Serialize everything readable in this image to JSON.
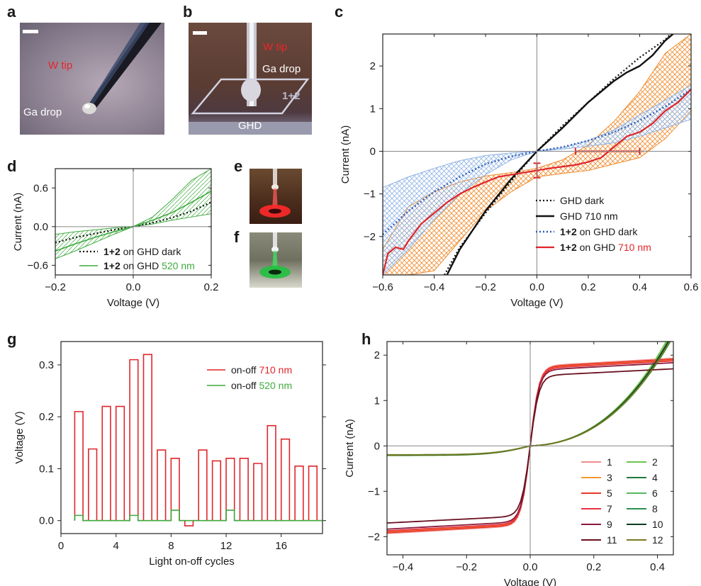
{
  "panels": {
    "a": {
      "label": "a",
      "tip_label": "W tip",
      "drop_label": "Ga drop"
    },
    "b": {
      "label": "b",
      "tip_label": "W tip",
      "drop_label": "Ga drop",
      "sample_label": "1+2",
      "substrate_label": "GHD"
    },
    "e": {
      "label": "e"
    },
    "f": {
      "label": "f"
    }
  },
  "colors": {
    "red": "#e0262b",
    "orange": "#f08a2a",
    "blue": "#2f5db6",
    "green": "#3faa3f",
    "black": "#111111",
    "lightblue": "#8fb3e3",
    "lightgreen": "#9fd49f"
  },
  "chart_data": [
    {
      "id": "c",
      "label": "c",
      "type": "line",
      "xlabel": "Voltage (V)",
      "ylabel": "Current (nA)",
      "xlim": [
        -0.6,
        0.6
      ],
      "ylim": [
        -2.9,
        2.75
      ],
      "xticks": [
        -0.6,
        -0.4,
        -0.2,
        0,
        0.2,
        0.4,
        0.6
      ],
      "yticks": [
        -2,
        -1,
        0,
        1,
        2
      ],
      "xtick_labels": [
        "−0.6",
        "−0.4",
        "−0.2",
        "0.0",
        "0.2",
        "0.4",
        "0.6"
      ],
      "ytick_labels": [
        "−2",
        "−1",
        "0",
        "1",
        "2"
      ],
      "legend": {
        "placement": "bottom-right"
      },
      "series": [
        {
          "name": "GHD dark",
          "name_plain": "GHD dark",
          "name_hl": "",
          "style": "dotted-black",
          "x": [
            -0.36,
            -0.3,
            -0.2,
            -0.1,
            0,
            0.1,
            0.2,
            0.3,
            0.4,
            0.5,
            0.52
          ],
          "y": [
            -2.9,
            -2.25,
            -1.45,
            -0.7,
            0,
            0.6,
            1.15,
            1.7,
            2.2,
            2.62,
            2.75
          ]
        },
        {
          "name": "GHD 710 nm",
          "name_plain": "GHD ",
          "name_hl": "710 nm",
          "style": "solid-black",
          "x": [
            -0.35,
            -0.3,
            -0.2,
            -0.1,
            0,
            0.1,
            0.2,
            0.3,
            0.35,
            0.4,
            0.45,
            0.5,
            0.53
          ],
          "y": [
            -2.9,
            -2.3,
            -1.4,
            -0.65,
            0,
            0.55,
            1.15,
            1.65,
            1.85,
            2.0,
            2.25,
            2.6,
            2.75
          ]
        },
        {
          "name": "1+2 on GHD dark",
          "name_bold": "1+2",
          "name_plain": " on GHD dark",
          "name_hl": "",
          "style": "dotted-blue",
          "x": [
            -0.6,
            -0.5,
            -0.4,
            -0.3,
            -0.2,
            -0.1,
            0,
            0.1,
            0.2,
            0.3,
            0.4,
            0.5,
            0.6
          ],
          "y": [
            -1.95,
            -1.4,
            -0.95,
            -0.6,
            -0.3,
            -0.12,
            0,
            0.1,
            0.25,
            0.45,
            0.72,
            1.05,
            1.45
          ]
        },
        {
          "name": "1+2 on GHD 710 nm",
          "name_bold": "1+2",
          "name_plain": " on GHD ",
          "name_hl": "710 nm",
          "style": "solid-red",
          "x": [
            -0.6,
            -0.58,
            -0.55,
            -0.52,
            -0.5,
            -0.45,
            -0.42,
            -0.4,
            -0.35,
            -0.3,
            -0.25,
            -0.2,
            -0.15,
            -0.1,
            0,
            0.05,
            0.1,
            0.15,
            0.2,
            0.25,
            0.3,
            0.35,
            0.4,
            0.45,
            0.5,
            0.55,
            0.6
          ],
          "y": [
            -2.9,
            -2.4,
            -2.25,
            -2.3,
            -2.1,
            -1.7,
            -1.55,
            -1.45,
            -1.2,
            -1.0,
            -0.85,
            -0.72,
            -0.6,
            -0.55,
            -0.45,
            -0.4,
            -0.36,
            -0.32,
            -0.25,
            -0.15,
            0.1,
            0.35,
            0.45,
            0.65,
            0.95,
            1.15,
            1.45
          ]
        }
      ],
      "bands": [
        {
          "color": "orange",
          "x": [
            -0.6,
            -0.5,
            -0.4,
            -0.3,
            -0.2,
            -0.1,
            0,
            0.1,
            0.2,
            0.3,
            0.4,
            0.5,
            0.6
          ],
          "upper": [
            -2.3,
            -1.3,
            -0.95,
            -0.72,
            -0.58,
            -0.5,
            -0.4,
            -0.2,
            0.15,
            0.7,
            1.4,
            2.3,
            2.75
          ],
          "lower": [
            -2.9,
            -2.9,
            -2.8,
            -2.1,
            -1.4,
            -0.95,
            -0.6,
            -0.52,
            -0.45,
            -0.3,
            -0.15,
            0.3,
            0.95
          ]
        },
        {
          "color": "lightblue",
          "x": [
            -0.6,
            -0.5,
            -0.4,
            -0.3,
            -0.2,
            -0.1,
            0,
            0.1,
            0.2,
            0.3,
            0.4,
            0.5,
            0.6
          ],
          "upper": [
            -0.85,
            -0.6,
            -0.4,
            -0.22,
            -0.1,
            -0.04,
            0,
            0.08,
            0.25,
            0.5,
            0.85,
            1.2,
            1.55
          ],
          "lower": [
            -2.9,
            -2.3,
            -1.6,
            -1.0,
            -0.55,
            -0.2,
            0,
            0.05,
            0.12,
            0.2,
            0.35,
            0.55,
            0.75
          ]
        }
      ],
      "error_bars": [
        {
          "orient": "h",
          "y": 0,
          "x0": 0.15,
          "x1": 0.4
        },
        {
          "orient": "v",
          "x": 0,
          "y0": -0.62,
          "y1": -0.28
        }
      ]
    },
    {
      "id": "d",
      "label": "d",
      "type": "line",
      "xlabel": "Voltage (V)",
      "ylabel": "Current (nA)",
      "xlim": [
        -0.2,
        0.2
      ],
      "ylim": [
        -0.75,
        0.9
      ],
      "xticks": [
        -0.2,
        0,
        0.2
      ],
      "yticks": [
        -0.6,
        0,
        0.6
      ],
      "xtick_labels": [
        "−0.2",
        "0.0",
        "0.2"
      ],
      "ytick_labels": [
        "−0.6",
        "0.0",
        "0.6"
      ],
      "legend": {
        "placement": "bottom-right"
      },
      "series": [
        {
          "name": "1+2 on GHD dark",
          "name_bold": "1+2",
          "name_plain": " on GHD dark",
          "name_hl": "",
          "style": "dotted-black",
          "x": [
            -0.2,
            -0.15,
            -0.1,
            -0.05,
            0,
            0.05,
            0.1,
            0.15,
            0.2
          ],
          "y": [
            -0.25,
            -0.17,
            -0.11,
            -0.05,
            0,
            0.06,
            0.14,
            0.24,
            0.38
          ]
        },
        {
          "name": "1+2 on GHD 520 nm",
          "name_bold": "1+2",
          "name_plain": " on GHD ",
          "name_hl": "520 nm",
          "style": "solid-green",
          "x": [
            -0.2,
            -0.15,
            -0.1,
            -0.05,
            0,
            0.05,
            0.1,
            0.15,
            0.2
          ],
          "y": [
            -0.38,
            -0.27,
            -0.17,
            -0.08,
            0,
            0.1,
            0.22,
            0.38,
            0.55
          ]
        }
      ],
      "bands": [
        {
          "color": "lightgreen",
          "x": [
            -0.2,
            -0.15,
            -0.1,
            -0.05,
            0,
            0.05,
            0.1,
            0.15,
            0.2
          ],
          "upper": [
            -0.12,
            -0.08,
            -0.05,
            -0.02,
            0,
            0.15,
            0.42,
            0.72,
            0.9
          ],
          "lower": [
            -0.5,
            -0.38,
            -0.25,
            -0.12,
            0,
            0.04,
            0.1,
            0.15,
            0.2
          ]
        }
      ]
    },
    {
      "id": "g",
      "label": "g",
      "type": "line",
      "xlabel": "Light on-off cycles",
      "ylabel": "Voltage (V)",
      "xlim": [
        0,
        19
      ],
      "ylim": [
        -0.025,
        0.345
      ],
      "xticks": [
        0,
        4,
        8,
        12,
        16
      ],
      "yticks": [
        0,
        0.1,
        0.2,
        0.3
      ],
      "xtick_labels": [
        "0",
        "4",
        "8",
        "12",
        "16"
      ],
      "ytick_labels": [
        "0.0",
        "0.1",
        "0.2",
        "0.3"
      ],
      "legend": {
        "placement": "top-right"
      },
      "series": [
        {
          "name": "on-off 710 nm",
          "name_plain": "on-off ",
          "name_hl": "710 nm",
          "style": "step-red",
          "cycles": [
            1,
            2,
            3,
            4,
            5,
            6,
            7,
            8,
            9,
            10,
            11,
            12,
            13,
            14,
            15,
            16,
            17,
            18
          ],
          "values": [
            0.21,
            0.138,
            0.22,
            0.22,
            0.31,
            0.32,
            0.136,
            0.12,
            -0.01,
            0.136,
            0.115,
            0.12,
            0.12,
            0.11,
            0.183,
            0.157,
            0.105,
            0.105
          ]
        },
        {
          "name": "on-off 520 nm",
          "name_plain": "on-off ",
          "name_hl": "520 nm",
          "style": "step-green",
          "cycles": [
            1,
            2,
            3,
            4,
            5,
            6,
            7,
            8,
            9,
            10,
            11,
            12,
            13,
            14,
            15,
            16,
            17,
            18
          ],
          "values": [
            0.01,
            0.0,
            0.0,
            0.0,
            0.01,
            0.0,
            0.0,
            0.02,
            0.0,
            0.0,
            0.0,
            0.02,
            0.0,
            0.0,
            0.0,
            0.0,
            0.0,
            0.0
          ]
        }
      ]
    },
    {
      "id": "h",
      "label": "h",
      "type": "line",
      "xlabel": "Voltage (V)",
      "ylabel": "Current (nA)",
      "xlim": [
        -0.45,
        0.45
      ],
      "ylim": [
        -2.4,
        2.3
      ],
      "xticks": [
        -0.4,
        -0.2,
        0,
        0.2,
        0.4
      ],
      "yticks": [
        -2,
        -1,
        0,
        1,
        2
      ],
      "xtick_labels": [
        "−0.4",
        "−0.2",
        "0.0",
        "0.2",
        "0.4"
      ],
      "ytick_labels": [
        "−2",
        "−1",
        "0",
        "1",
        "2"
      ],
      "legend": {
        "placement": "bottom-right",
        "columns": 2
      },
      "series": [
        {
          "name": "1",
          "group": "odd",
          "color": "#f08c8c",
          "k": 1.0
        },
        {
          "name": "2",
          "group": "even",
          "color": "#6cc44a",
          "k": 1.0
        },
        {
          "name": "3",
          "group": "odd",
          "color": "#f5962e",
          "k": 0.98
        },
        {
          "name": "4",
          "group": "even",
          "color": "#1f7a3a",
          "k": 0.97
        },
        {
          "name": "5",
          "group": "odd",
          "color": "#e8392a",
          "k": 0.99
        },
        {
          "name": "6",
          "group": "even",
          "color": "#55b860",
          "k": 0.95
        },
        {
          "name": "7",
          "group": "odd",
          "color": "#e83340",
          "k": 0.97
        },
        {
          "name": "8",
          "group": "even",
          "color": "#2d8f4e",
          "k": 0.93
        },
        {
          "name": "9",
          "group": "odd",
          "color": "#8a1a3a",
          "k": 0.95
        },
        {
          "name": "10",
          "group": "even",
          "color": "#0f3d22",
          "k": 0.96
        },
        {
          "name": "11",
          "group": "odd",
          "color": "#6a1020",
          "k": 0.88
        },
        {
          "name": "12",
          "group": "even",
          "color": "#7a7a20",
          "k": 0.94
        }
      ]
    }
  ]
}
